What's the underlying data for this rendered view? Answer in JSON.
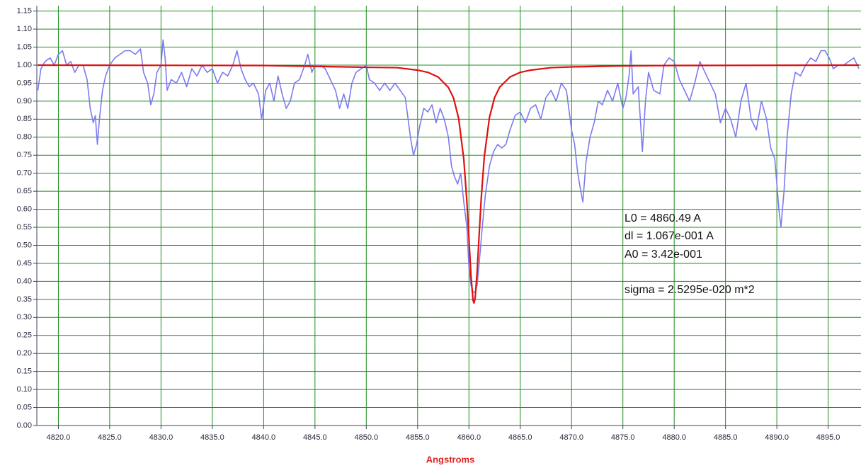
{
  "chart_data": {
    "type": "line",
    "x_label": "Angstroms",
    "xlim": [
      4817.9,
      4898.2
    ],
    "ylim": [
      0,
      1.165
    ],
    "grid": true,
    "grid_color": "#1e8c1e",
    "xticks": [
      {
        "value": 4820,
        "label": "4820.0"
      },
      {
        "value": 4825,
        "label": "4825.0"
      },
      {
        "value": 4830,
        "label": "4830.0"
      },
      {
        "value": 4835,
        "label": "4835.0"
      },
      {
        "value": 4840,
        "label": "4840.0"
      },
      {
        "value": 4845,
        "label": "4845.0"
      },
      {
        "value": 4850,
        "label": "4850.0"
      },
      {
        "value": 4855,
        "label": "4855.0"
      },
      {
        "value": 4860,
        "label": "4860.0"
      },
      {
        "value": 4865,
        "label": "4865.0"
      },
      {
        "value": 4870,
        "label": "4870.0"
      },
      {
        "value": 4875,
        "label": "4875.0"
      },
      {
        "value": 4880,
        "label": "4880.0"
      },
      {
        "value": 4885,
        "label": "4885.0"
      },
      {
        "value": 4890,
        "label": "4890.0"
      },
      {
        "value": 4895,
        "label": "4895.0"
      }
    ],
    "yticks": [
      {
        "value": 0,
        "label": "0.00"
      },
      0.05,
      {
        "value": 0.1,
        "label": "0.10"
      },
      0.15,
      {
        "value": 0.2,
        "label": "0.20"
      },
      0.25,
      {
        "value": 0.3,
        "label": "0.30"
      },
      0.35,
      {
        "value": 0.4,
        "label": "0.40"
      },
      0.45,
      {
        "value": 0.5,
        "label": "0.50"
      },
      0.55,
      {
        "value": 0.6,
        "label": "0.60"
      },
      0.65,
      {
        "value": 0.7,
        "label": "0.70"
      },
      0.75,
      {
        "value": 0.8,
        "label": "0.80"
      },
      0.85,
      {
        "value": 0.9,
        "label": "0.90"
      },
      0.95,
      {
        "value": 1,
        "label": "1.00"
      },
      1.05,
      {
        "value": 1.1,
        "label": "1.10"
      },
      1.15
    ],
    "annotations": [
      "L0 = 4860.49 A",
      "dl = 1.067e-001 A",
      "A0 = 3.42e-001",
      "sigma = 2.5295e-020 m*2"
    ],
    "series": [
      {
        "color": "#7b7bf0",
        "x": [
          4818.0,
          4818.3,
          4818.7,
          4819.2,
          4819.6,
          4820.0,
          4820.4,
          4820.8,
          4821.2,
          4821.6,
          4822.0,
          4822.4,
          4822.8,
          4823.1,
          4823.4,
          4823.6,
          4823.8,
          4824.0,
          4824.3,
          4824.6,
          4825.0,
          4825.5,
          4826.0,
          4826.5,
          4827.0,
          4827.5,
          4828.0,
          4828.3,
          4828.7,
          4829.0,
          4829.3,
          4829.6,
          4830.0,
          4830.2,
          4830.4,
          4830.6,
          4831.0,
          4831.5,
          4832.0,
          4832.5,
          4833.0,
          4833.5,
          4834.0,
          4834.5,
          4835.0,
          4835.5,
          4836.0,
          4836.5,
          4837.0,
          4837.4,
          4837.8,
          4838.2,
          4838.6,
          4839.0,
          4839.5,
          4839.8,
          4840.2,
          4840.6,
          4841.0,
          4841.4,
          4841.8,
          4842.2,
          4842.6,
          4843.0,
          4843.5,
          4844.0,
          4844.3,
          4844.7,
          4845.0,
          4845.5,
          4846.0,
          4846.5,
          4847.0,
          4847.4,
          4847.8,
          4848.2,
          4848.6,
          4849.0,
          4849.5,
          4850.0,
          4850.3,
          4850.8,
          4851.3,
          4851.8,
          4852.3,
          4852.8,
          4853.3,
          4853.8,
          4854.3,
          4854.6,
          4854.9,
          4855.2,
          4855.6,
          4856.0,
          4856.4,
          4856.8,
          4857.2,
          4857.6,
          4858.0,
          4858.3,
          4858.6,
          4858.9,
          4859.2,
          4859.5,
          4859.8,
          4860.0,
          4860.2,
          4860.4,
          4860.6,
          4860.8,
          4861.0,
          4861.3,
          4861.6,
          4862.0,
          4862.4,
          4862.8,
          4863.2,
          4863.6,
          4864.0,
          4864.5,
          4865.0,
          4865.5,
          4866.0,
          4866.5,
          4867.0,
          4867.5,
          4868.0,
          4868.5,
          4869.0,
          4869.5,
          4870.0,
          4870.3,
          4870.6,
          4870.9,
          4871.1,
          4871.4,
          4871.8,
          4872.2,
          4872.6,
          4873.0,
          4873.5,
          4874.0,
          4874.5,
          4875.0,
          4875.3,
          4875.6,
          4875.8,
          4876.0,
          4876.5,
          4876.9,
          4877.2,
          4877.5,
          4878.0,
          4878.6,
          4879.0,
          4879.5,
          4880.0,
          4880.5,
          4881.0,
          4881.5,
          4882.0,
          4882.5,
          4883.0,
          4883.5,
          4884.0,
          4884.5,
          4885.0,
          4885.5,
          4886.0,
          4886.5,
          4887.0,
          4887.5,
          4888.0,
          4888.5,
          4889.0,
          4889.4,
          4889.8,
          4890.2,
          4890.4,
          4890.7,
          4891.0,
          4891.4,
          4891.8,
          4892.3,
          4892.8,
          4893.3,
          4893.8,
          4894.3,
          4894.7,
          4895.1,
          4895.5,
          4896.0,
          4896.5,
          4897.0,
          4897.5,
          4898.0
        ],
        "values": [
          0.93,
          0.99,
          1.01,
          1.02,
          1.0,
          1.03,
          1.04,
          1.0,
          1.01,
          0.98,
          1.0,
          1.0,
          0.96,
          0.88,
          0.84,
          0.86,
          0.78,
          0.85,
          0.93,
          0.97,
          1.0,
          1.02,
          1.03,
          1.04,
          1.04,
          1.03,
          1.045,
          0.98,
          0.95,
          0.89,
          0.92,
          0.98,
          1.0,
          1.07,
          1.02,
          0.93,
          0.96,
          0.95,
          0.98,
          0.94,
          0.99,
          0.97,
          1.0,
          0.98,
          0.99,
          0.95,
          0.98,
          0.97,
          1.0,
          1.04,
          0.99,
          0.96,
          0.94,
          0.95,
          0.92,
          0.85,
          0.93,
          0.95,
          0.9,
          0.97,
          0.92,
          0.88,
          0.9,
          0.95,
          0.96,
          1.0,
          1.03,
          0.98,
          1.0,
          1.0,
          0.99,
          0.96,
          0.93,
          0.88,
          0.92,
          0.88,
          0.95,
          0.98,
          0.99,
          1.0,
          0.96,
          0.95,
          0.93,
          0.95,
          0.93,
          0.95,
          0.93,
          0.91,
          0.8,
          0.75,
          0.78,
          0.83,
          0.88,
          0.87,
          0.89,
          0.84,
          0.88,
          0.85,
          0.8,
          0.72,
          0.69,
          0.67,
          0.7,
          0.62,
          0.55,
          0.44,
          0.39,
          0.37,
          0.37,
          0.39,
          0.45,
          0.55,
          0.64,
          0.72,
          0.76,
          0.78,
          0.77,
          0.78,
          0.82,
          0.86,
          0.87,
          0.84,
          0.88,
          0.89,
          0.85,
          0.91,
          0.93,
          0.9,
          0.95,
          0.93,
          0.82,
          0.78,
          0.7,
          0.65,
          0.62,
          0.73,
          0.8,
          0.84,
          0.9,
          0.89,
          0.93,
          0.9,
          0.95,
          0.88,
          0.91,
          0.97,
          1.04,
          0.92,
          0.94,
          0.76,
          0.9,
          0.98,
          0.93,
          0.92,
          1.0,
          1.02,
          1.01,
          0.96,
          0.93,
          0.9,
          0.95,
          1.01,
          0.98,
          0.95,
          0.92,
          0.84,
          0.88,
          0.85,
          0.8,
          0.9,
          0.95,
          0.85,
          0.82,
          0.9,
          0.85,
          0.77,
          0.74,
          0.6,
          0.55,
          0.65,
          0.8,
          0.92,
          0.98,
          0.97,
          1.0,
          1.02,
          1.01,
          1.04,
          1.04,
          1.02,
          0.99,
          1.0,
          1.0,
          1.01,
          1.02,
          0.99
        ]
      },
      {
        "color": "#e01010",
        "x": [
          4818,
          4840,
          4850,
          4853,
          4855,
          4856,
          4857,
          4858,
          4858.5,
          4859,
          4859.5,
          4859.8,
          4860,
          4860.2,
          4860.4,
          4860.49,
          4860.6,
          4860.8,
          4861,
          4861.2,
          4861.5,
          4862,
          4862.5,
          4863,
          4864,
          4865,
          4866,
          4868,
          4870,
          4875,
          4880,
          4898
        ],
        "values": [
          1.0,
          0.999,
          0.994,
          0.993,
          0.986,
          0.98,
          0.967,
          0.938,
          0.909,
          0.852,
          0.739,
          0.622,
          0.52,
          0.416,
          0.348,
          0.34,
          0.352,
          0.426,
          0.531,
          0.631,
          0.746,
          0.855,
          0.91,
          0.939,
          0.967,
          0.98,
          0.986,
          0.993,
          0.995,
          0.998,
          0.999,
          1.0
        ]
      }
    ]
  }
}
